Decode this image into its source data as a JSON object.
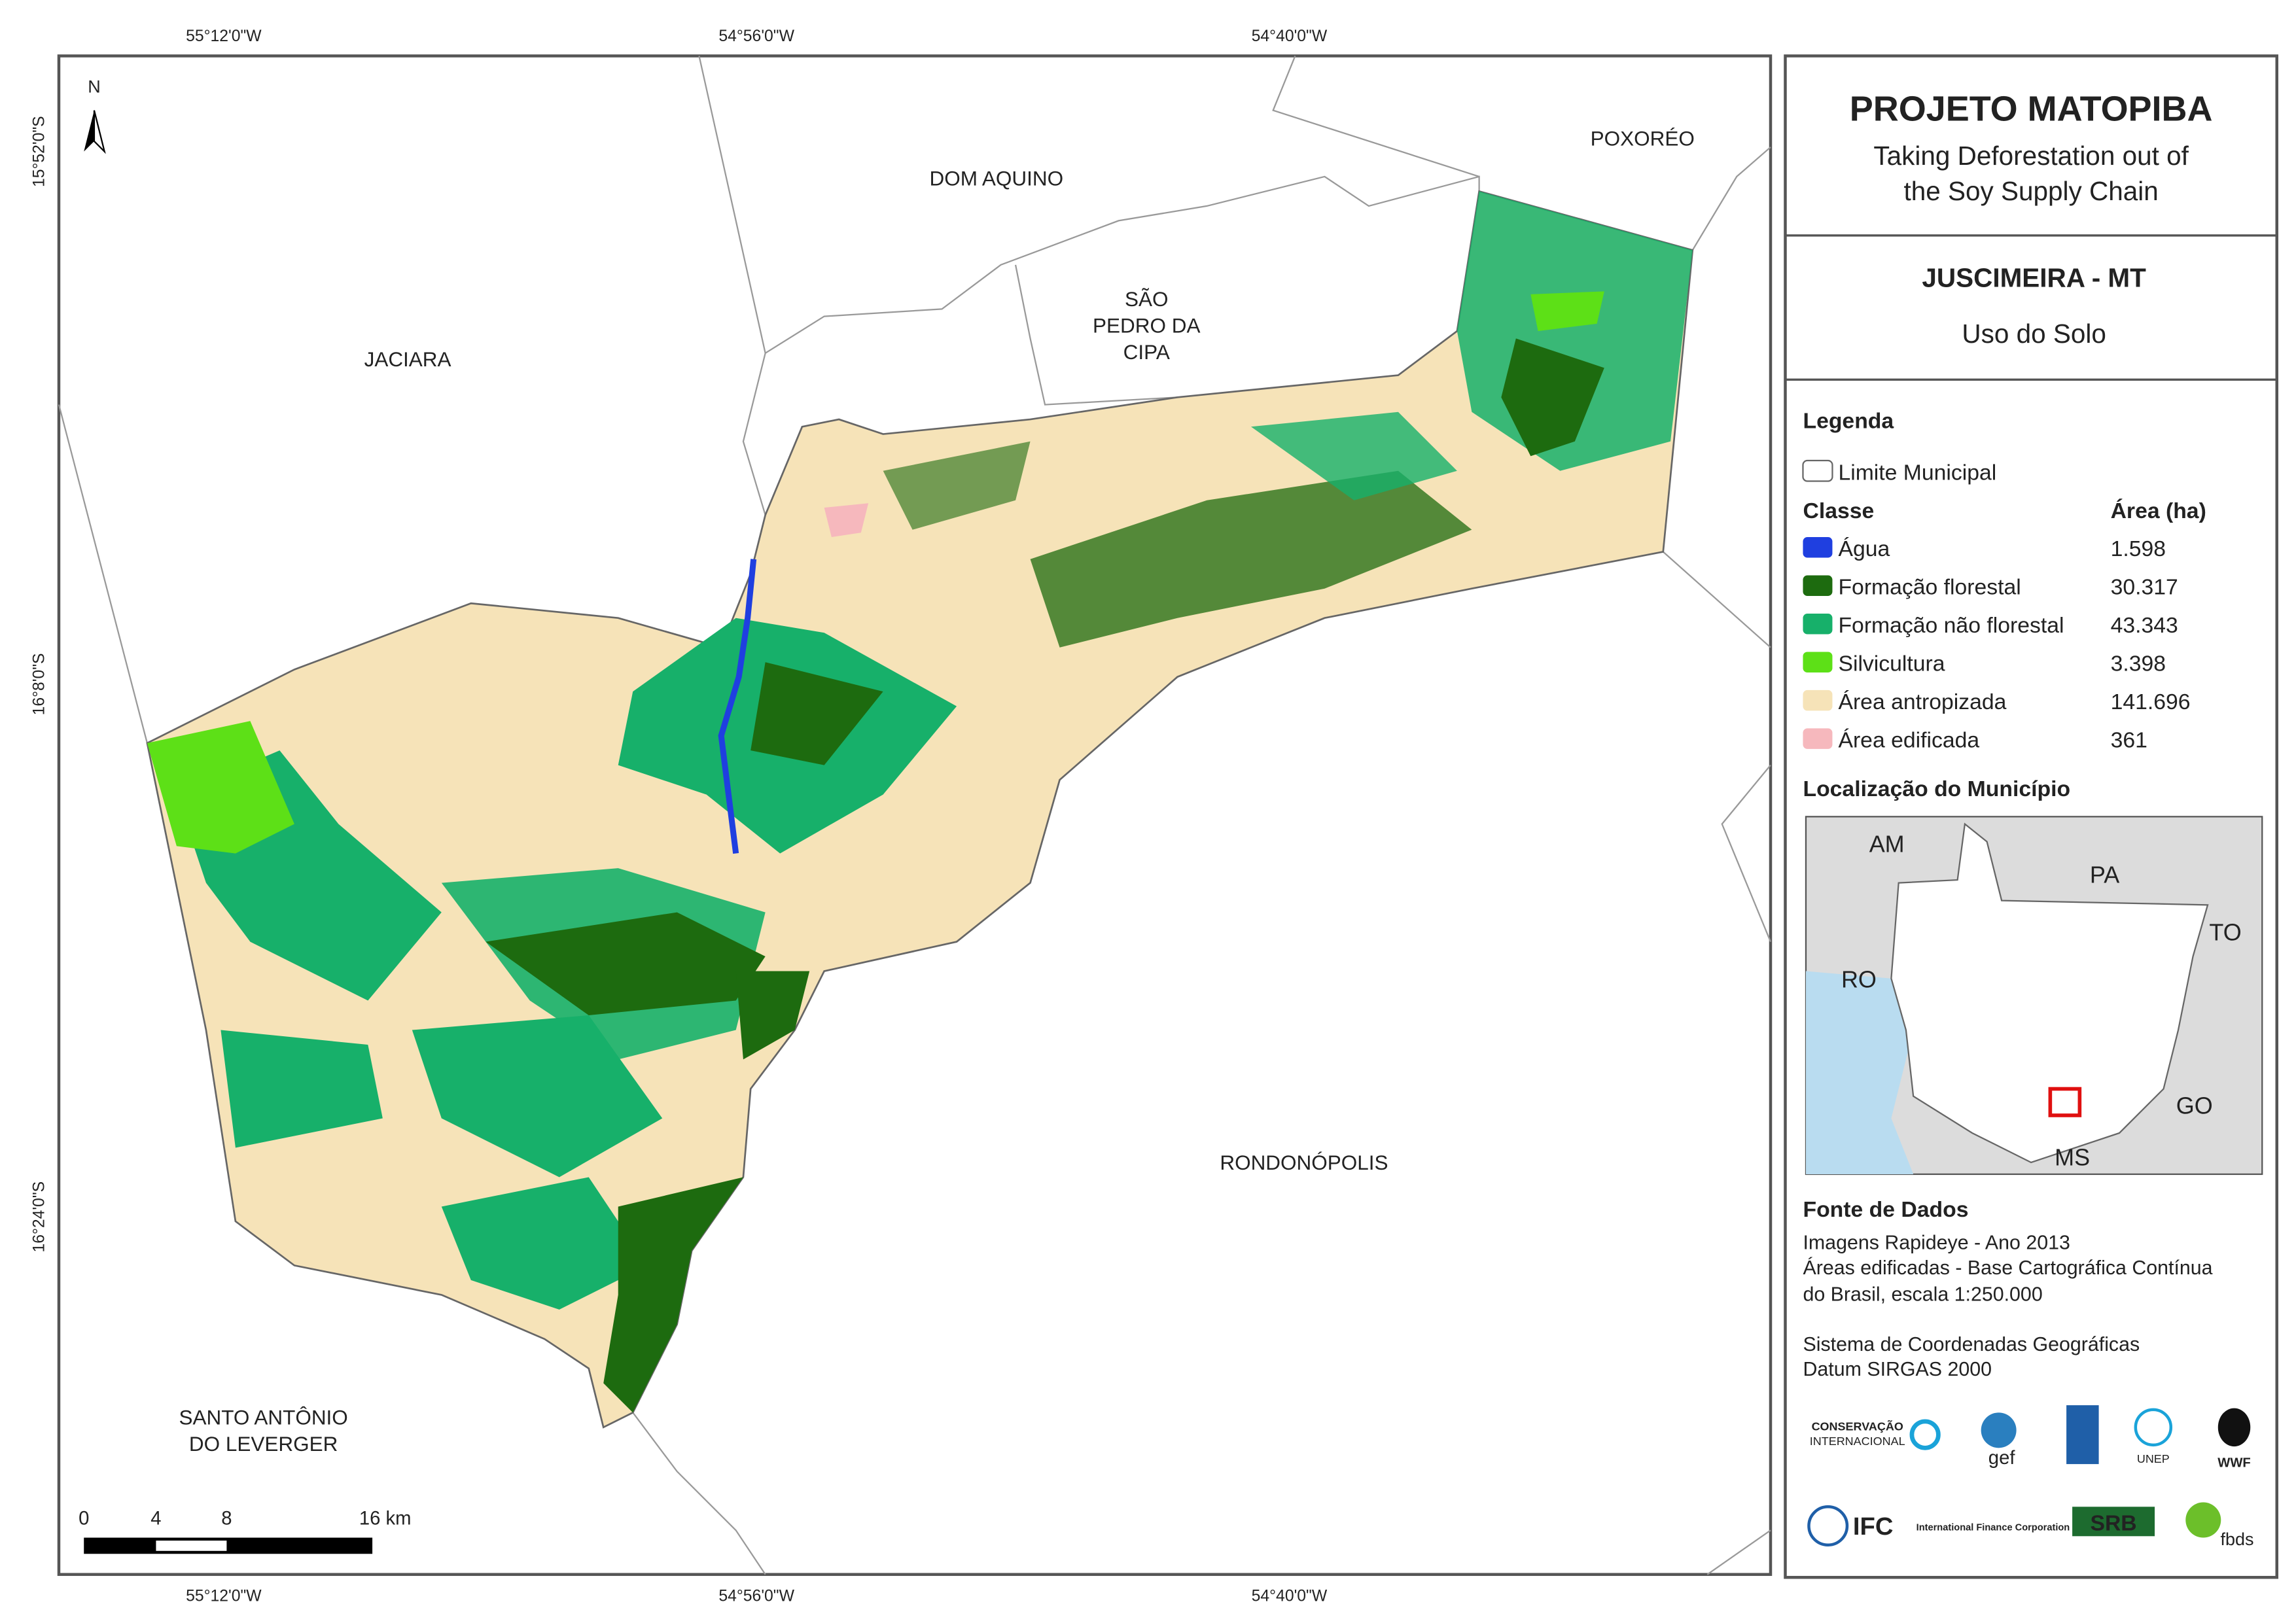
{
  "map": {
    "coords_top": [
      "55°12'0\"W",
      "54°56'0\"W",
      "54°40'0\"W"
    ],
    "coords_bottom": [
      "55°12'0\"W",
      "54°56'0\"W",
      "54°40'0\"W"
    ],
    "coords_left": [
      "15°52'0\"S",
      "16°8'0\"S",
      "16°24'0\"S"
    ],
    "north": "N",
    "places": [
      "DOM AQUINO",
      "POXORÉO",
      "SÃO",
      "PEDRO DA",
      "CIPA",
      "JACIARA",
      "RONDONÓPOLIS",
      "SANTO ANTÔNIO",
      "DO LEVERGER"
    ],
    "scale_labels": [
      "0",
      "4",
      "8",
      "16 km"
    ]
  },
  "panel": {
    "title": "PROJETO MATOPIBA",
    "subtitle": [
      "Taking Deforestation out of",
      "the Soy Supply Chain"
    ],
    "municipality": "JUSCIMEIRA - MT",
    "theme": "Uso do Solo",
    "legend_heading": "Legenda",
    "boundary_label": "Limite Municipal",
    "class_header": "Classe",
    "area_header": "Área (ha)",
    "classes": [
      {
        "name": "Água",
        "area": "1.598",
        "color": "#1f3fe0"
      },
      {
        "name": "Formação florestal",
        "area": "30.317",
        "color": "#1d6b0f"
      },
      {
        "name": "Formação não florestal",
        "area": "43.343",
        "color": "#17b06a"
      },
      {
        "name": "Silvicultura",
        "area": "3.398",
        "color": "#5de017"
      },
      {
        "name": "Área antropizada",
        "area": "141.696",
        "color": "#f6e3b8"
      },
      {
        "name": "Área edificada",
        "area": "361",
        "color": "#f6b8bd"
      }
    ],
    "location_heading": "Localização do Município",
    "location_labels": [
      "AM",
      "PA",
      "TO",
      "RO",
      "GO",
      "MS"
    ],
    "sources_heading": "Fonte de Dados",
    "sources": [
      "Imagens Rapideye - Ano 2013",
      "Áreas edificadas - Base Cartográfica Contínua",
      "do Brasil, escala 1:250.000",
      "Sistema de Coordenadas Geográficas",
      "Datum SIRGAS 2000"
    ],
    "logos": [
      "CONSERVAÇÃO",
      "INTERNACIONAL",
      "gef",
      "UNEP",
      "WWF",
      "IFC",
      "International Finance Corporation",
      "SRB",
      "fbds"
    ]
  }
}
